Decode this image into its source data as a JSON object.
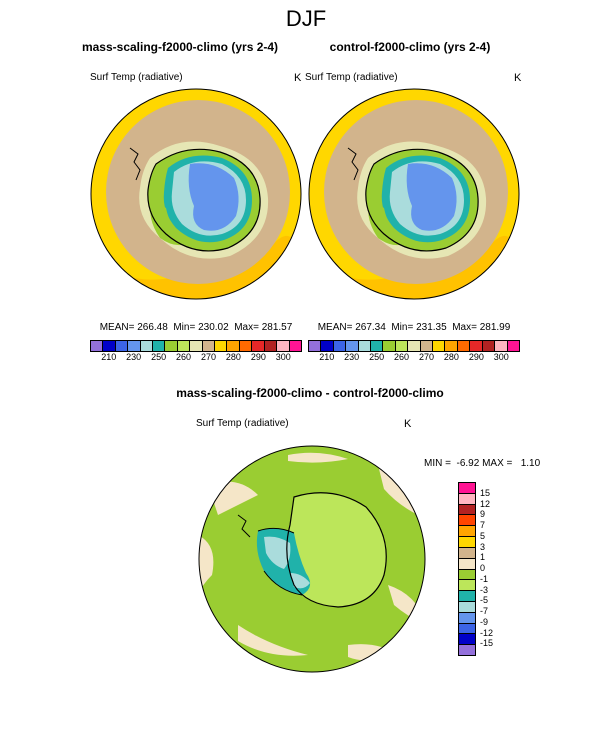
{
  "title": "DJF",
  "panels": [
    {
      "title": "mass-scaling-f2000-climo (yrs 2-4)",
      "variable": "Surf Temp (radiative)",
      "units": "K",
      "stats": "MEAN= 266.48  Min= 230.02  Max= 281.57"
    },
    {
      "title": "control-f2000-climo (yrs 2-4)",
      "variable": "Surf Temp (radiative)",
      "units": "K",
      "stats": "MEAN= 267.34  Min= 231.35  Max= 281.99"
    }
  ],
  "abs_colorbar": {
    "colors": [
      "#9370db",
      "#0000c8",
      "#3c64e6",
      "#6495ed",
      "#aadcdc",
      "#20b2aa",
      "#9acd32",
      "#bce65a",
      "#e6e6b4",
      "#d2b48c",
      "#ffd700",
      "#ffa500",
      "#ff6a00",
      "#e62828",
      "#b22222",
      "#ffb6c1",
      "#ff1493"
    ],
    "labels": [
      "210",
      "230",
      "250",
      "260",
      "270",
      "280",
      "290",
      "300"
    ]
  },
  "diff_panel": {
    "title": "mass-scaling-f2000-climo - control-f2000-climo",
    "variable": "Surf Temp (radiative)",
    "units": "K",
    "stats": "MIN =  -6.92 MAX =   1.10"
  },
  "diff_colorbar": {
    "colors": [
      "#ff1493",
      "#ffb6c1",
      "#b22222",
      "#ff4500",
      "#ffa500",
      "#ffd700",
      "#d2b48c",
      "#f5e6c8",
      "#9acd32",
      "#bce65a",
      "#20b2aa",
      "#aadcdc",
      "#6495ed",
      "#3c64e6",
      "#0000c8",
      "#9370db"
    ],
    "labels": [
      "15",
      "12",
      "9",
      "7",
      "5",
      "3",
      "1",
      "0",
      "-1",
      "-3",
      "-5",
      "-7",
      "-9",
      "-12",
      "-15"
    ]
  }
}
